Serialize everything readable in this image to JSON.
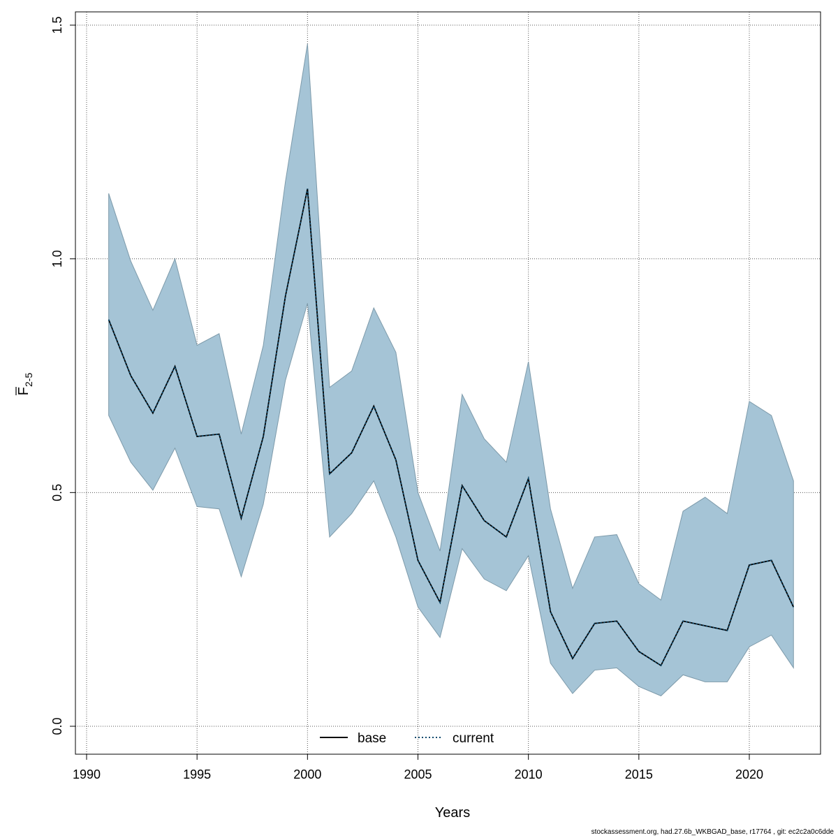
{
  "chart_data": {
    "type": "line",
    "xlabel": "Years",
    "ylabel": {
      "main": "F",
      "sub": "2-5",
      "overline": true
    },
    "xlim": [
      1990,
      2023
    ],
    "ylim": [
      -0.05,
      1.5
    ],
    "xticks": [
      1990,
      1995,
      2000,
      2005,
      2010,
      2015,
      2020
    ],
    "xtick_labels": [
      "1990",
      "1995",
      "2000",
      "2005",
      "2010",
      "2015",
      "2020"
    ],
    "yticks": [
      0.0,
      0.5,
      1.0,
      1.5
    ],
    "ytick_labels": [
      "0.0",
      "0.5",
      "1.0",
      "1.5"
    ],
    "grid": true,
    "legend": {
      "placement": "bottom-center",
      "entries": [
        {
          "label": "base",
          "style": "solid",
          "color": "#000000"
        },
        {
          "label": "current",
          "style": "dotted",
          "color": "#0a4a6e"
        }
      ]
    },
    "band_color": "#a5c4d6",
    "band_edge_color": "#7d9aaa",
    "x": [
      1991,
      1992,
      1993,
      1994,
      1995,
      1996,
      1997,
      1998,
      1999,
      2000,
      2001,
      2002,
      2003,
      2004,
      2005,
      2006,
      2007,
      2008,
      2009,
      2010,
      2011,
      2012,
      2013,
      2014,
      2015,
      2016,
      2017,
      2018,
      2019,
      2020,
      2021,
      2022
    ],
    "series": [
      {
        "name": "base",
        "style": "solid",
        "color": "#000000",
        "values": [
          0.87,
          0.75,
          0.67,
          0.77,
          0.62,
          0.625,
          0.445,
          0.62,
          0.92,
          1.15,
          0.54,
          0.585,
          0.685,
          0.57,
          0.355,
          0.265,
          0.515,
          0.44,
          0.405,
          0.53,
          0.245,
          0.145,
          0.22,
          0.225,
          0.16,
          0.13,
          0.225,
          0.215,
          0.205,
          0.345,
          0.355,
          0.255
        ]
      },
      {
        "name": "current",
        "style": "dotted",
        "color": "#0a4a6e",
        "values": [
          0.87,
          0.75,
          0.67,
          0.77,
          0.62,
          0.625,
          0.445,
          0.62,
          0.92,
          1.15,
          0.54,
          0.585,
          0.685,
          0.57,
          0.355,
          0.265,
          0.515,
          0.44,
          0.405,
          0.53,
          0.245,
          0.145,
          0.22,
          0.225,
          0.16,
          0.13,
          0.225,
          0.215,
          0.205,
          0.345,
          0.355,
          0.255
        ]
      }
    ],
    "band_upper": [
      1.14,
      0.995,
      0.89,
      1.0,
      0.815,
      0.84,
      0.625,
      0.815,
      1.165,
      1.46,
      0.725,
      0.76,
      0.895,
      0.8,
      0.5,
      0.375,
      0.71,
      0.615,
      0.565,
      0.78,
      0.465,
      0.295,
      0.405,
      0.41,
      0.305,
      0.27,
      0.46,
      0.49,
      0.455,
      0.695,
      0.665,
      0.525
    ],
    "band_lower": [
      0.665,
      0.565,
      0.505,
      0.595,
      0.47,
      0.465,
      0.32,
      0.475,
      0.74,
      0.905,
      0.405,
      0.455,
      0.525,
      0.405,
      0.255,
      0.19,
      0.38,
      0.315,
      0.29,
      0.365,
      0.135,
      0.07,
      0.12,
      0.125,
      0.085,
      0.065,
      0.11,
      0.095,
      0.095,
      0.17,
      0.195,
      0.125
    ]
  },
  "footer": "stockassessment.org, had.27.6b_WKBGAD_base, r17764 , git: ec2c2a0c6dde"
}
